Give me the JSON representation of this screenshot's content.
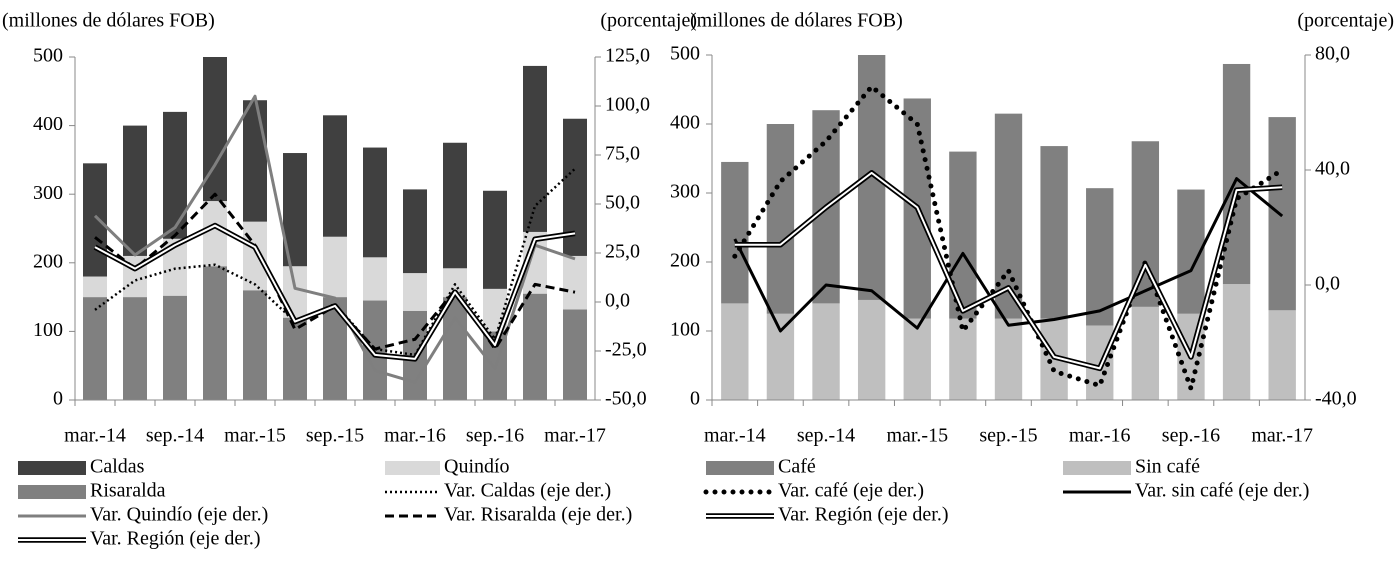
{
  "chart_data": [
    {
      "type": "combo",
      "ylabel": "(millones de dólares FOB)",
      "y2label": "(porcentaje)",
      "categories": [
        "mar.-14",
        null,
        "sep.-14",
        null,
        "mar.-15",
        null,
        "sep.-15",
        null,
        "mar.-16",
        null,
        "sep.-16",
        null,
        "mar.-17"
      ],
      "ylim": [
        0,
        500
      ],
      "yticks": [
        0,
        100,
        200,
        300,
        400,
        500
      ],
      "y2lim": [
        -50,
        125
      ],
      "y2ticks": [
        {
          "value": -50,
          "label": "-50,0"
        },
        {
          "value": -25,
          "label": "-25,0"
        },
        {
          "value": 0,
          "label": "0,0"
        },
        {
          "value": 25,
          "label": "25,0"
        },
        {
          "value": 50,
          "label": "50,0"
        },
        {
          "value": 75,
          "label": "75,0"
        },
        {
          "value": 100,
          "label": "100,0"
        },
        {
          "value": 125,
          "label": "125,0"
        }
      ],
      "series": [
        {
          "name": "Caldas",
          "type": "bar",
          "color": "#404040",
          "values": [
            165,
            190,
            185,
            210,
            177,
            165,
            177,
            160,
            122,
            183,
            143,
            242,
            200
          ]
        },
        {
          "name": "Quindío",
          "type": "bar",
          "color": "#d9d9d9",
          "values": [
            30,
            60,
            83,
            95,
            100,
            75,
            88,
            63,
            55,
            42,
            62,
            90,
            78
          ]
        },
        {
          "name": "Risaralda",
          "type": "bar",
          "color": "#808080",
          "values": [
            150,
            150,
            152,
            195,
            160,
            120,
            150,
            145,
            130,
            150,
            100,
            155,
            132
          ]
        },
        {
          "name": "Var. Caldas (eje der.)",
          "type": "line",
          "style": "dotted",
          "axis": "y2",
          "color": "#000000",
          "values": [
            -4,
            11,
            17,
            19,
            9,
            -10,
            -1,
            -24,
            -27,
            9,
            -19,
            49,
            68
          ]
        },
        {
          "name": "Var. Quindío (eje der.)",
          "type": "line",
          "style": "solid",
          "axis": "y2",
          "color": "#7f7f7f",
          "values": [
            44,
            24,
            38,
            70,
            105,
            7,
            2,
            -35,
            -41,
            -8,
            -34,
            29,
            22
          ]
        },
        {
          "name": "Var. Risaralda (eje der.)",
          "type": "line",
          "style": "dashed",
          "axis": "y2",
          "color": "#000000",
          "values": [
            33,
            17,
            34,
            55,
            29,
            -14,
            -2,
            -24,
            -19,
            6,
            -24,
            9,
            5
          ]
        },
        {
          "name": "Var. Región (eje der.)",
          "type": "line",
          "style": "double",
          "axis": "y2",
          "color": "#000000",
          "values": [
            28,
            17,
            29,
            39,
            28,
            -10,
            -2,
            -27,
            -29,
            5,
            -22,
            32,
            35
          ]
        }
      ]
    },
    {
      "type": "combo",
      "ylabel": "(millones de dólares FOB)",
      "y2label": "(porcentaje)",
      "categories": [
        "mar.-14",
        null,
        "sep.-14",
        null,
        "mar.-15",
        null,
        "sep.-15",
        null,
        "mar.-16",
        null,
        "sep.-16",
        null,
        "mar.-17"
      ],
      "ylim": [
        0,
        500
      ],
      "yticks": [
        0,
        100,
        200,
        300,
        400,
        500
      ],
      "y2lim": [
        -40,
        80
      ],
      "y2ticks": [
        {
          "value": -40,
          "label": "-40,0"
        },
        {
          "value": 0,
          "label": "0,0"
        },
        {
          "value": 40,
          "label": "40,0"
        },
        {
          "value": 80,
          "label": "80,0"
        }
      ],
      "series": [
        {
          "name": "Café",
          "type": "bar",
          "color": "#808080",
          "values": [
            205,
            275,
            280,
            355,
            319,
            242,
            297,
            250,
            199,
            240,
            180,
            319,
            280
          ]
        },
        {
          "name": "Sin café",
          "type": "bar",
          "color": "#bfbfbf",
          "values": [
            140,
            125,
            140,
            145,
            118,
            118,
            118,
            118,
            108,
            135,
            125,
            168,
            130
          ]
        },
        {
          "name": "Var. café (eje der.)",
          "type": "line",
          "style": "dots",
          "axis": "y2",
          "color": "#000000",
          "values": [
            10,
            36,
            50,
            69,
            56,
            -16,
            5,
            -30,
            -35,
            8,
            -36,
            30,
            40
          ]
        },
        {
          "name": "Var. sin café (eje der.)",
          "type": "line",
          "style": "solid",
          "axis": "y2",
          "color": "#000000",
          "values": [
            16,
            -16,
            0,
            -2,
            -15,
            11,
            -14,
            -12,
            -9,
            -2,
            5,
            37,
            24
          ]
        },
        {
          "name": "Var. Región (eje der.)",
          "type": "line",
          "style": "double",
          "axis": "y2",
          "color": "#000000",
          "values": [
            14,
            14,
            27,
            39,
            27,
            -9,
            -1,
            -25,
            -29,
            7,
            -25,
            33,
            34
          ]
        }
      ]
    }
  ]
}
